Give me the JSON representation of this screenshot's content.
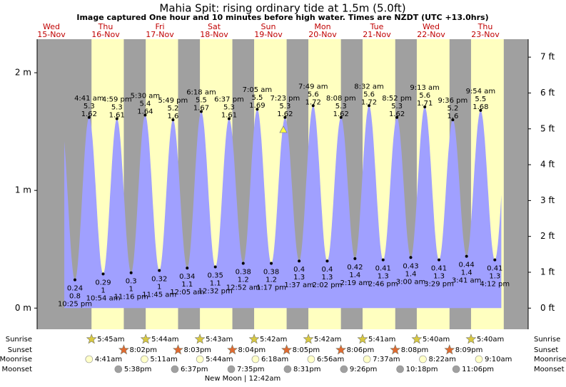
{
  "chart_data": {
    "type": "tide",
    "title": "Mahia Spit: rising  ordinary tide at 1.5m (5.0ft)",
    "subtitle": "Image captured One hour and 10 minutes before high water. Times are NZDT (UTC +13.0hrs)",
    "days": [
      {
        "name": "Wed",
        "date": "15-Nov"
      },
      {
        "name": "Thu",
        "date": "16-Nov"
      },
      {
        "name": "Fri",
        "date": "17-Nov"
      },
      {
        "name": "Sat",
        "date": "18-Nov"
      },
      {
        "name": "Sun",
        "date": "19-Nov"
      },
      {
        "name": "Mon",
        "date": "20-Nov"
      },
      {
        "name": "Tue",
        "date": "21-Nov"
      },
      {
        "name": "Wed",
        "date": "22-Nov"
      },
      {
        "name": "Thu",
        "date": "23-Nov"
      }
    ],
    "tides": [
      {
        "time": "10:25 pm",
        "ft": 0.8,
        "m": 0.24,
        "kind": "low"
      },
      {
        "time": "4:41 am",
        "ft": 5.3,
        "m": 1.62,
        "kind": "high"
      },
      {
        "time": "10:54 am",
        "ft": 1.0,
        "m": 0.29,
        "kind": "low"
      },
      {
        "time": "4:59 pm",
        "ft": 5.3,
        "m": 1.61,
        "kind": "high"
      },
      {
        "time": "11:16 pm",
        "ft": 1.0,
        "m": 0.3,
        "kind": "low"
      },
      {
        "time": "5:30 am",
        "ft": 5.4,
        "m": 1.64,
        "kind": "high"
      },
      {
        "time": "11:45 am",
        "ft": 1.0,
        "m": 0.32,
        "kind": "low"
      },
      {
        "time": "5:49 pm",
        "ft": 5.2,
        "m": 1.6,
        "kind": "high"
      },
      {
        "time": "12:05 am",
        "ft": 1.1,
        "m": 0.34,
        "kind": "low"
      },
      {
        "time": "6:18 am",
        "ft": 5.5,
        "m": 1.67,
        "kind": "high"
      },
      {
        "time": "12:32 pm",
        "ft": 1.1,
        "m": 0.35,
        "kind": "low"
      },
      {
        "time": "6:37 pm",
        "ft": 5.3,
        "m": 1.61,
        "kind": "high"
      },
      {
        "time": "12:52 am",
        "ft": 1.2,
        "m": 0.38,
        "kind": "low"
      },
      {
        "time": "7:05 am",
        "ft": 5.5,
        "m": 1.69,
        "kind": "high"
      },
      {
        "time": "1:17 pm",
        "ft": 1.2,
        "m": 0.38,
        "kind": "low"
      },
      {
        "time": "7:23 pm",
        "ft": 5.3,
        "m": 1.62,
        "kind": "high"
      },
      {
        "time": "1:37 am",
        "ft": 1.3,
        "m": 0.4,
        "kind": "low"
      },
      {
        "time": "7:49 am",
        "ft": 5.6,
        "m": 1.72,
        "kind": "high"
      },
      {
        "time": "2:02 pm",
        "ft": 1.3,
        "m": 0.4,
        "kind": "low"
      },
      {
        "time": "8:08 pm",
        "ft": 5.3,
        "m": 1.62,
        "kind": "high"
      },
      {
        "time": "2:19 am",
        "ft": 1.4,
        "m": 0.42,
        "kind": "low"
      },
      {
        "time": "8:32 am",
        "ft": 5.6,
        "m": 1.72,
        "kind": "high"
      },
      {
        "time": "2:46 pm",
        "ft": 1.3,
        "m": 0.41,
        "kind": "low"
      },
      {
        "time": "8:52 pm",
        "ft": 5.3,
        "m": 1.62,
        "kind": "high"
      },
      {
        "time": "3:00 am",
        "ft": 1.4,
        "m": 0.43,
        "kind": "low"
      },
      {
        "time": "9:13 am",
        "ft": 5.6,
        "m": 1.71,
        "kind": "high"
      },
      {
        "time": "3:29 pm",
        "ft": 1.3,
        "m": 0.41,
        "kind": "low"
      },
      {
        "time": "9:36 pm",
        "ft": 5.2,
        "m": 1.6,
        "kind": "high"
      },
      {
        "time": "3:41 am",
        "ft": 1.4,
        "m": 0.44,
        "kind": "low"
      },
      {
        "time": "9:54 am",
        "ft": 5.5,
        "m": 1.68,
        "kind": "high"
      },
      {
        "time": "4:12 pm",
        "ft": 1.3,
        "m": 0.41,
        "kind": "low"
      }
    ],
    "ylim": [
      -0.18,
      2.285
    ],
    "yticks": [
      {
        "value": 0,
        "label": "0 m"
      },
      {
        "value": 1,
        "label": "1 m"
      },
      {
        "value": 2,
        "label": "2 m"
      }
    ],
    "y2lim": [
      -0.59,
      7.5
    ],
    "y2ticks": [
      {
        "value": 0,
        "label": "0 ft"
      },
      {
        "value": 1,
        "label": "1 ft"
      },
      {
        "value": 2,
        "label": "2 ft"
      },
      {
        "value": 3,
        "label": "3 ft"
      },
      {
        "value": 4,
        "label": "4 ft"
      },
      {
        "value": 5,
        "label": "5 ft"
      },
      {
        "value": 6,
        "label": "6 ft"
      },
      {
        "value": 7,
        "label": "7 ft"
      }
    ],
    "water_color": "#a0a0ff",
    "night_color": "#a0a0a0",
    "day_color": "#ffffc0",
    "rows": {
      "sunrise": {
        "label": "Sunrise",
        "times": [
          null,
          "5:45am",
          "5:44am",
          "5:43am",
          "5:42am",
          "5:42am",
          "5:41am",
          "5:40am",
          "5:40am"
        ]
      },
      "sunset": {
        "label": "Sunset",
        "times": [
          null,
          "8:02pm",
          "8:03pm",
          "8:04pm",
          "8:05pm",
          "8:06pm",
          "8:08pm",
          "8:09pm",
          null
        ]
      },
      "moonrise": {
        "label": "Moonrise",
        "times": [
          null,
          "4:41am",
          "5:11am",
          "5:44am",
          "6:18am",
          "6:56am",
          "7:37am",
          "8:22am",
          "9:10am"
        ]
      },
      "moonset": {
        "label": "Moonset",
        "times": [
          null,
          "5:38pm",
          "6:37pm",
          "7:35pm",
          "8:31pm",
          "9:26pm",
          "10:18pm",
          "11:06pm",
          null
        ]
      }
    },
    "moon_phase": "New Moon | 12:42am"
  }
}
